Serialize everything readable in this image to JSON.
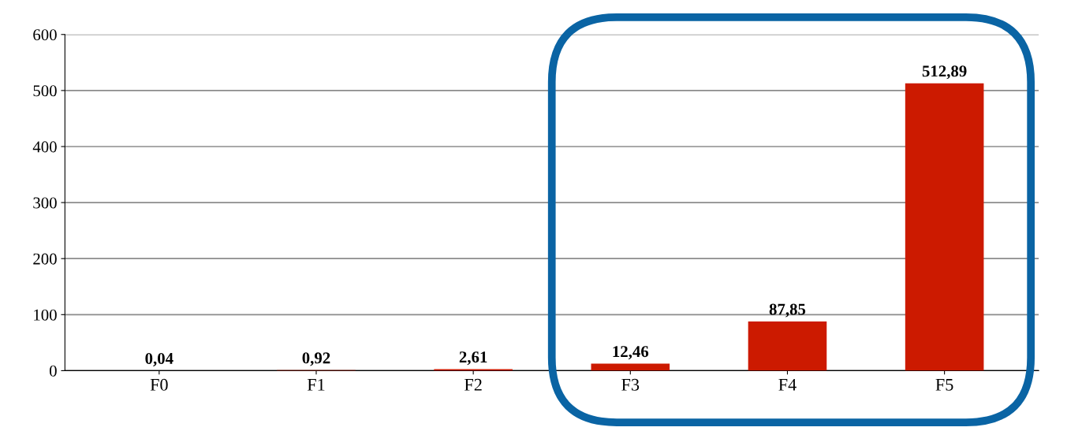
{
  "chart_data": {
    "type": "bar",
    "categories": [
      "F0",
      "F1",
      "F2",
      "F3",
      "F4",
      "F5"
    ],
    "values": [
      0.04,
      0.92,
      2.61,
      12.46,
      87.85,
      512.89
    ],
    "value_labels": [
      "0,04",
      "0,92",
      "2,61",
      "12,46",
      "87,85",
      "512,89"
    ],
    "color": "#cc1a00",
    "ylim": [
      0,
      600
    ],
    "yticks": [
      0,
      100,
      200,
      300,
      400,
      500,
      600
    ],
    "grid": "y",
    "legend": false
  }
}
